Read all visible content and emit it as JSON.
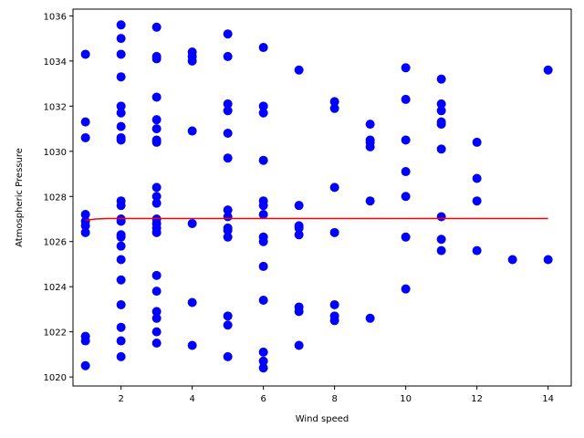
{
  "chart_data": {
    "type": "scatter",
    "title": "",
    "xlabel": "Wind speed",
    "ylabel": "Atmospheric Pressure",
    "xlim": [
      0.65,
      14.65
    ],
    "ylim": [
      1019.6,
      1036.3
    ],
    "xticks": [
      2,
      4,
      6,
      8,
      10,
      12,
      14
    ],
    "yticks": [
      1020,
      1022,
      1024,
      1026,
      1028,
      1030,
      1032,
      1034,
      1036
    ],
    "grid": false,
    "colors": {
      "points": "#0000ff",
      "fit_line": "#ff0000"
    },
    "series": [
      {
        "type": "scatter",
        "points": [
          [
            1,
            1034.3
          ],
          [
            1,
            1031.3
          ],
          [
            1,
            1030.6
          ],
          [
            1,
            1027.2
          ],
          [
            1,
            1026.9
          ],
          [
            1,
            1026.7
          ],
          [
            1,
            1026.4
          ],
          [
            1,
            1021.8
          ],
          [
            1,
            1021.6
          ],
          [
            1,
            1020.5
          ],
          [
            2,
            1035.6
          ],
          [
            2,
            1035.0
          ],
          [
            2,
            1034.3
          ],
          [
            2,
            1033.3
          ],
          [
            2,
            1032.0
          ],
          [
            2,
            1031.7
          ],
          [
            2,
            1031.1
          ],
          [
            2,
            1030.6
          ],
          [
            2,
            1030.5
          ],
          [
            2,
            1027.8
          ],
          [
            2,
            1027.6
          ],
          [
            2,
            1027.0
          ],
          [
            2,
            1026.9
          ],
          [
            2,
            1026.3
          ],
          [
            2,
            1026.2
          ],
          [
            2,
            1025.8
          ],
          [
            2,
            1025.2
          ],
          [
            2,
            1024.3
          ],
          [
            2,
            1023.2
          ],
          [
            2,
            1022.2
          ],
          [
            2,
            1021.6
          ],
          [
            2,
            1020.9
          ],
          [
            3,
            1035.5
          ],
          [
            3,
            1034.2
          ],
          [
            3,
            1034.1
          ],
          [
            3,
            1032.4
          ],
          [
            3,
            1031.4
          ],
          [
            3,
            1031.0
          ],
          [
            3,
            1030.5
          ],
          [
            3,
            1030.4
          ],
          [
            3,
            1028.4
          ],
          [
            3,
            1028.0
          ],
          [
            3,
            1027.7
          ],
          [
            3,
            1027.0
          ],
          [
            3,
            1026.8
          ],
          [
            3,
            1026.6
          ],
          [
            3,
            1026.4
          ],
          [
            3,
            1024.5
          ],
          [
            3,
            1023.8
          ],
          [
            3,
            1022.9
          ],
          [
            3,
            1022.6
          ],
          [
            3,
            1022.0
          ],
          [
            3,
            1021.5
          ],
          [
            4,
            1034.4
          ],
          [
            4,
            1034.2
          ],
          [
            4,
            1034.0
          ],
          [
            4,
            1030.9
          ],
          [
            4,
            1026.8
          ],
          [
            4,
            1023.3
          ],
          [
            4,
            1021.4
          ],
          [
            5,
            1035.2
          ],
          [
            5,
            1034.2
          ],
          [
            5,
            1032.1
          ],
          [
            5,
            1031.8
          ],
          [
            5,
            1030.8
          ],
          [
            5,
            1029.7
          ],
          [
            5,
            1027.4
          ],
          [
            5,
            1027.1
          ],
          [
            5,
            1026.6
          ],
          [
            5,
            1026.5
          ],
          [
            5,
            1026.2
          ],
          [
            5,
            1022.7
          ],
          [
            5,
            1022.3
          ],
          [
            5,
            1020.9
          ],
          [
            6,
            1034.6
          ],
          [
            6,
            1032.0
          ],
          [
            6,
            1031.7
          ],
          [
            6,
            1029.6
          ],
          [
            6,
            1027.8
          ],
          [
            6,
            1027.6
          ],
          [
            6,
            1027.2
          ],
          [
            6,
            1026.2
          ],
          [
            6,
            1026.0
          ],
          [
            6,
            1024.9
          ],
          [
            6,
            1023.4
          ],
          [
            6,
            1021.1
          ],
          [
            6,
            1020.7
          ],
          [
            6,
            1020.4
          ],
          [
            7,
            1033.6
          ],
          [
            7,
            1027.6
          ],
          [
            7,
            1026.7
          ],
          [
            7,
            1026.6
          ],
          [
            7,
            1026.3
          ],
          [
            7,
            1023.1
          ],
          [
            7,
            1022.9
          ],
          [
            7,
            1021.4
          ],
          [
            8,
            1032.2
          ],
          [
            8,
            1031.9
          ],
          [
            8,
            1028.4
          ],
          [
            8,
            1026.4
          ],
          [
            8,
            1023.2
          ],
          [
            8,
            1022.7
          ],
          [
            8,
            1022.5
          ],
          [
            9,
            1031.2
          ],
          [
            9,
            1030.5
          ],
          [
            9,
            1030.4
          ],
          [
            9,
            1030.2
          ],
          [
            9,
            1027.8
          ],
          [
            9,
            1022.6
          ],
          [
            10,
            1033.7
          ],
          [
            10,
            1032.3
          ],
          [
            10,
            1030.5
          ],
          [
            10,
            1029.1
          ],
          [
            10,
            1028.0
          ],
          [
            10,
            1026.2
          ],
          [
            10,
            1023.9
          ],
          [
            11,
            1033.2
          ],
          [
            11,
            1032.1
          ],
          [
            11,
            1031.8
          ],
          [
            11,
            1031.3
          ],
          [
            11,
            1031.2
          ],
          [
            11,
            1030.1
          ],
          [
            11,
            1027.1
          ],
          [
            11,
            1026.1
          ],
          [
            11,
            1025.6
          ],
          [
            12,
            1030.4
          ],
          [
            12,
            1028.8
          ],
          [
            12,
            1027.8
          ],
          [
            12,
            1025.6
          ],
          [
            13,
            1025.2
          ],
          [
            14,
            1033.6
          ],
          [
            14,
            1025.2
          ]
        ]
      },
      {
        "type": "line",
        "points": [
          [
            1,
            1026.95
          ],
          [
            1.3,
            1027.0
          ],
          [
            1.6,
            1027.02
          ],
          [
            2,
            1027.02
          ],
          [
            4,
            1027.02
          ],
          [
            6,
            1027.02
          ],
          [
            8,
            1027.02
          ],
          [
            10,
            1027.02
          ],
          [
            12,
            1027.02
          ],
          [
            14,
            1027.02
          ]
        ]
      }
    ]
  }
}
